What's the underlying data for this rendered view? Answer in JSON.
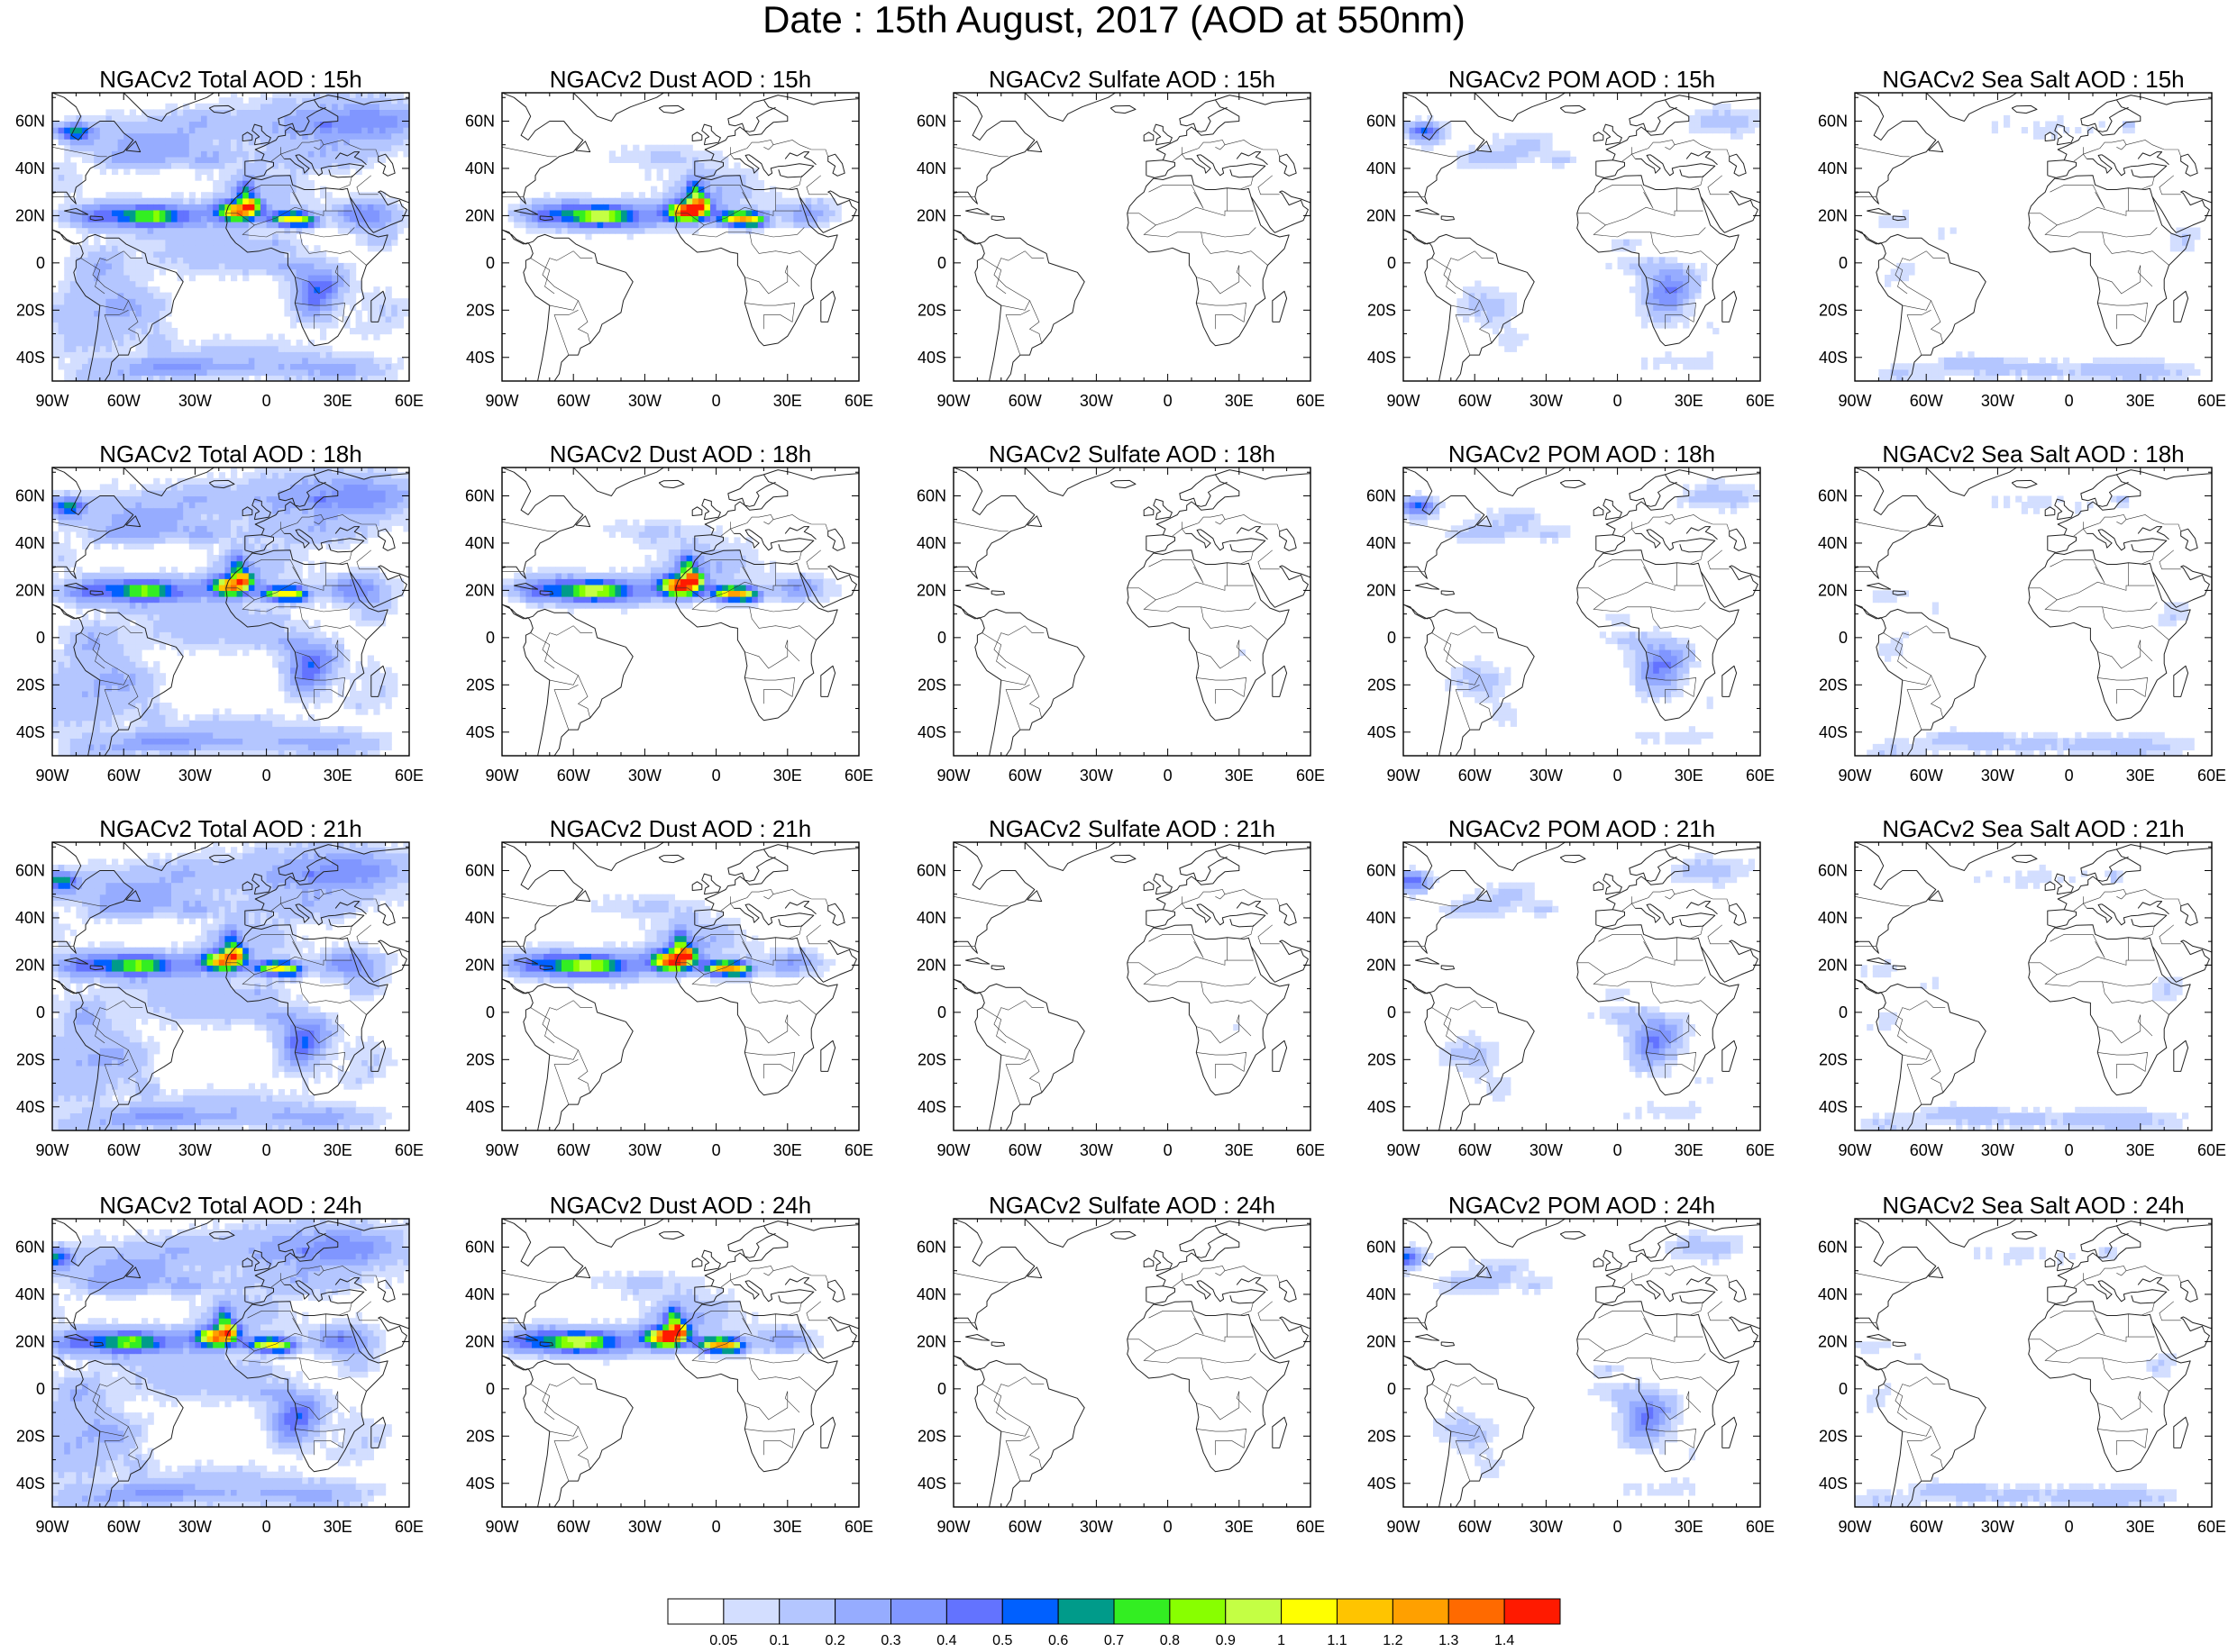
{
  "title": "Date : 15th August, 2017 (AOD at 550nm)",
  "lon_ticks": [
    "90W",
    "60W",
    "30W",
    "0",
    "30E",
    "60E"
  ],
  "lat_ticks": [
    "60N",
    "40N",
    "20N",
    "0",
    "20S",
    "40S"
  ],
  "panels": [
    {
      "title": "NGACv2 Total AOD : 15h",
      "species": "total"
    },
    {
      "title": "NGACv2 Dust AOD : 15h",
      "species": "dust"
    },
    {
      "title": "NGACv2 Sulfate AOD : 15h",
      "species": "sulfate"
    },
    {
      "title": "NGACv2 POM AOD : 15h",
      "species": "pom"
    },
    {
      "title": "NGACv2 Sea Salt AOD : 15h",
      "species": "seasalt"
    },
    {
      "title": "NGACv2 Total AOD : 18h",
      "species": "total"
    },
    {
      "title": "NGACv2 Dust AOD : 18h",
      "species": "dust"
    },
    {
      "title": "NGACv2 Sulfate AOD : 18h",
      "species": "sulfate"
    },
    {
      "title": "NGACv2 POM AOD : 18h",
      "species": "pom"
    },
    {
      "title": "NGACv2 Sea Salt AOD : 18h",
      "species": "seasalt"
    },
    {
      "title": "NGACv2 Total AOD : 21h",
      "species": "total"
    },
    {
      "title": "NGACv2 Dust AOD : 21h",
      "species": "dust"
    },
    {
      "title": "NGACv2 Sulfate AOD : 21h",
      "species": "sulfate"
    },
    {
      "title": "NGACv2 POM AOD : 21h",
      "species": "pom"
    },
    {
      "title": "NGACv2 Sea Salt AOD : 21h",
      "species": "seasalt"
    },
    {
      "title": "NGACv2 Total AOD : 24h",
      "species": "total"
    },
    {
      "title": "NGACv2 Dust AOD : 24h",
      "species": "dust"
    },
    {
      "title": "NGACv2 Sulfate AOD : 24h",
      "species": "sulfate"
    },
    {
      "title": "NGACv2 POM AOD : 24h",
      "species": "pom"
    },
    {
      "title": "NGACv2 Sea Salt  AOD : 24h",
      "species": "seasalt"
    }
  ],
  "colorbar": {
    "labels": [
      "0.05",
      "0.1",
      "0.2",
      "0.3",
      "0.4",
      "0.5",
      "0.6",
      "0.7",
      "0.8",
      "0.9",
      "1",
      "1.1",
      "1.2",
      "1.3",
      "1.4"
    ],
    "colors": [
      "#ffffff",
      "#d3deff",
      "#b4c6ff",
      "#96acff",
      "#8096ff",
      "#6373ff",
      "#0060ff",
      "#009b8a",
      "#33ee22",
      "#88ff00",
      "#c4ff44",
      "#ffff00",
      "#ffc400",
      "#ffa000",
      "#ff6a00",
      "#ff1a00"
    ]
  },
  "domain": {
    "lon_range": [
      -90,
      60
    ],
    "lat_range": [
      -50,
      72
    ]
  }
}
